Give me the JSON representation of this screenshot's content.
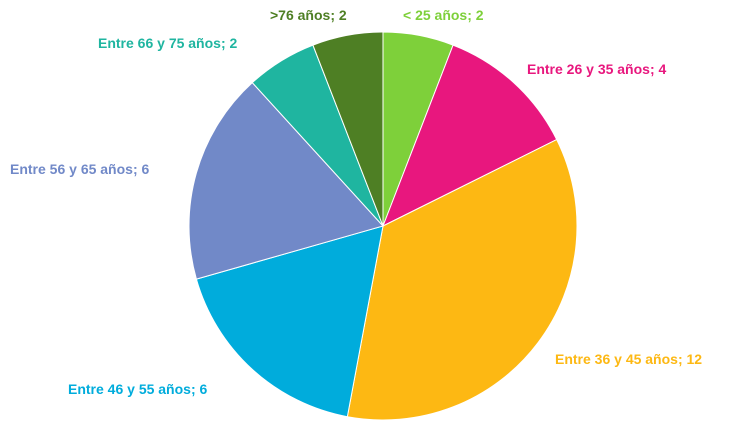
{
  "chart_data": {
    "type": "pie",
    "categories": [
      "< 25 años",
      "Entre 26 y 35 años",
      "Entre 36 y 45 años",
      "Entre 46 y 55 años",
      "Entre 56 y 65 años",
      "Entre 66 y 75 años",
      ">76 años"
    ],
    "values": [
      2,
      4,
      12,
      6,
      6,
      2,
      2
    ],
    "separator": "; ",
    "colors": [
      "#7ed03a",
      "#e8177e",
      "#fdb813",
      "#00acdc",
      "#7189c8",
      "#1fb5a0",
      "#4e7f24"
    ]
  }
}
